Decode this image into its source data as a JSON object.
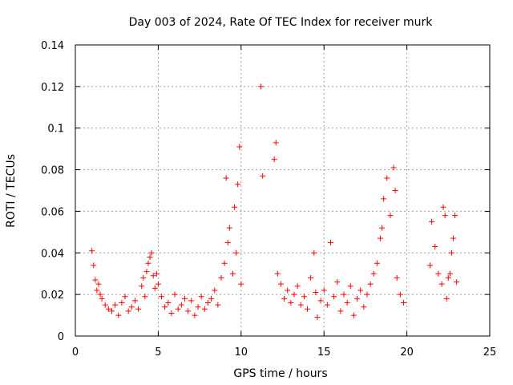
{
  "chart_data": {
    "type": "scatter",
    "title": "Day 003 of 2024, Rate Of TEC Index for receiver murk",
    "xlabel": "GPS time / hours",
    "ylabel": "ROTI / TECUs",
    "xlim": [
      0,
      25
    ],
    "ylim": [
      0,
      0.14
    ],
    "xticks": [
      0,
      5,
      10,
      15,
      20,
      25
    ],
    "xtick_labels": [
      "0",
      "5",
      "10",
      "15",
      "20",
      "25"
    ],
    "yticks": [
      0,
      0.02,
      0.04,
      0.06,
      0.08,
      0.1,
      0.12,
      0.14
    ],
    "ytick_labels": [
      "0",
      "0.02",
      "0.04",
      "0.06",
      "0.08",
      "0.1",
      "0.12",
      "0.14"
    ],
    "grid": true,
    "marker": "+",
    "color": "#ff0000",
    "series": [
      {
        "name": "ROTI",
        "x": [
          1.0,
          1.1,
          1.2,
          1.3,
          1.4,
          1.5,
          1.6,
          1.8,
          2.0,
          2.2,
          2.4,
          2.6,
          2.8,
          3.0,
          3.2,
          3.4,
          3.6,
          3.8,
          4.0,
          4.1,
          4.2,
          4.3,
          4.4,
          4.5,
          4.6,
          4.7,
          4.8,
          4.9,
          5.0,
          5.2,
          5.4,
          5.6,
          5.8,
          6.0,
          6.2,
          6.4,
          6.6,
          6.8,
          7.0,
          7.2,
          7.4,
          7.6,
          7.8,
          8.0,
          8.2,
          8.4,
          8.6,
          8.8,
          9.0,
          9.1,
          9.2,
          9.3,
          9.5,
          9.6,
          9.7,
          9.8,
          9.9,
          10.0,
          11.2,
          11.3,
          12.0,
          12.1,
          12.2,
          12.4,
          12.6,
          12.8,
          13.0,
          13.2,
          13.4,
          13.6,
          13.8,
          14.0,
          14.2,
          14.4,
          14.5,
          14.6,
          14.8,
          15.0,
          15.2,
          15.4,
          15.6,
          15.8,
          16.0,
          16.2,
          16.4,
          16.6,
          16.8,
          17.0,
          17.2,
          17.4,
          17.6,
          17.8,
          18.0,
          18.2,
          18.4,
          18.5,
          18.6,
          18.8,
          19.0,
          19.2,
          19.3,
          19.4,
          19.6,
          19.8,
          21.4,
          21.5,
          21.7,
          21.9,
          22.1,
          22.2,
          22.3,
          22.4,
          22.5,
          22.6,
          22.7,
          22.8,
          22.9,
          23.0
        ],
        "y": [
          0.041,
          0.034,
          0.027,
          0.022,
          0.025,
          0.02,
          0.018,
          0.015,
          0.013,
          0.012,
          0.015,
          0.01,
          0.016,
          0.019,
          0.012,
          0.014,
          0.017,
          0.013,
          0.024,
          0.028,
          0.019,
          0.031,
          0.035,
          0.038,
          0.04,
          0.029,
          0.023,
          0.03,
          0.025,
          0.019,
          0.014,
          0.016,
          0.011,
          0.02,
          0.013,
          0.015,
          0.018,
          0.012,
          0.017,
          0.01,
          0.014,
          0.019,
          0.013,
          0.016,
          0.018,
          0.022,
          0.015,
          0.028,
          0.035,
          0.076,
          0.045,
          0.052,
          0.03,
          0.062,
          0.04,
          0.073,
          0.091,
          0.025,
          0.12,
          0.077,
          0.085,
          0.093,
          0.03,
          0.025,
          0.018,
          0.022,
          0.016,
          0.02,
          0.024,
          0.015,
          0.019,
          0.013,
          0.028,
          0.04,
          0.021,
          0.009,
          0.017,
          0.022,
          0.015,
          0.045,
          0.019,
          0.026,
          0.012,
          0.02,
          0.016,
          0.024,
          0.01,
          0.018,
          0.022,
          0.014,
          0.02,
          0.025,
          0.03,
          0.035,
          0.047,
          0.052,
          0.066,
          0.076,
          0.058,
          0.081,
          0.07,
          0.028,
          0.02,
          0.016,
          0.034,
          0.055,
          0.043,
          0.03,
          0.025,
          0.062,
          0.058,
          0.018,
          0.028,
          0.03,
          0.04,
          0.047,
          0.058,
          0.026
        ]
      }
    ]
  }
}
